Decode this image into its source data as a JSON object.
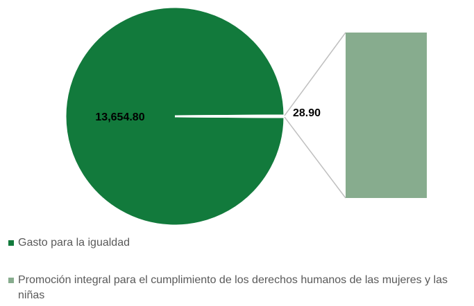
{
  "chart_data": {
    "type": "pie-of-bar",
    "categories": [
      "Gasto para la igualdad",
      "Promoción integral para el cumplimiento de los derechos humanos de las mujeres y las niñas"
    ],
    "values": [
      13654.8,
      28.9
    ],
    "value_labels": [
      "13,654.80",
      "28.90"
    ],
    "colors": [
      "#127a3c",
      "#87ac8e"
    ]
  }
}
